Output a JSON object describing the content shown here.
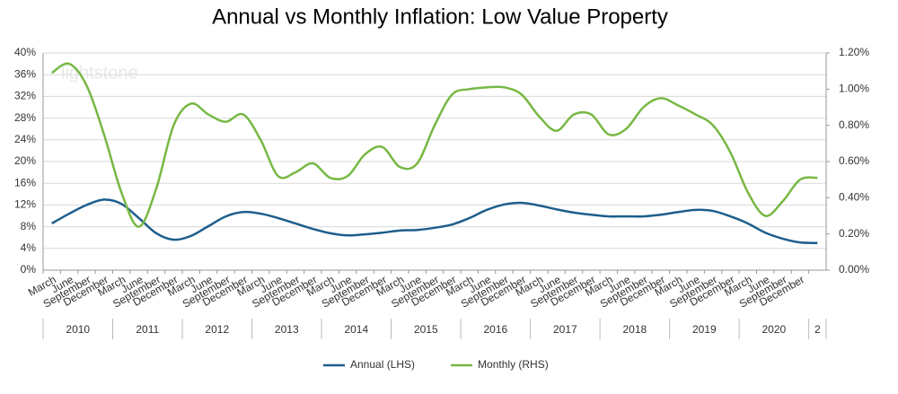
{
  "chart_data": {
    "type": "line",
    "title": "Annual vs Monthly Inflation: Low Value Property",
    "watermark": "lightstone",
    "categories": [
      "March",
      "June",
      "September",
      "December",
      "March",
      "June",
      "September",
      "December",
      "March",
      "June",
      "September",
      "December",
      "March",
      "June",
      "September",
      "December",
      "March",
      "June",
      "September",
      "December",
      "March",
      "June",
      "September",
      "December",
      "March",
      "June",
      "September",
      "December",
      "March",
      "June",
      "September",
      "December",
      "March",
      "June",
      "September",
      "December",
      "March",
      "June",
      "September",
      "December",
      "March",
      "June",
      "September",
      "December",
      null
    ],
    "year_groups": [
      "2010",
      "2011",
      "2012",
      "2013",
      "2014",
      "2015",
      "2016",
      "2017",
      "2018",
      "2019",
      "2020",
      "2"
    ],
    "series": [
      {
        "name": "Annual (LHS)",
        "color": "#1d5e8c",
        "axis": "y",
        "values": [
          8.6,
          10.4,
          12.0,
          13.0,
          12.2,
          9.6,
          6.8,
          5.6,
          6.3,
          8.1,
          9.9,
          10.7,
          10.4,
          9.6,
          8.6,
          7.6,
          6.8,
          6.4,
          6.6,
          6.9,
          7.3,
          7.4,
          7.8,
          8.4,
          9.6,
          11.1,
          12.1,
          12.4,
          11.9,
          11.2,
          10.6,
          10.2,
          9.9,
          9.9,
          9.9,
          10.2,
          10.7,
          11.1,
          10.9,
          9.9,
          8.6,
          6.9,
          5.8,
          5.1,
          5.0
        ]
      },
      {
        "name": "Monthly (RHS)",
        "color": "#77b843",
        "axis": "y2",
        "values": [
          1.09,
          1.14,
          1.02,
          0.75,
          0.43,
          0.24,
          0.45,
          0.8,
          0.92,
          0.86,
          0.82,
          0.86,
          0.72,
          0.52,
          0.54,
          0.59,
          0.51,
          0.52,
          0.64,
          0.68,
          0.57,
          0.59,
          0.8,
          0.97,
          1.0,
          1.01,
          1.01,
          0.97,
          0.85,
          0.77,
          0.86,
          0.86,
          0.75,
          0.78,
          0.9,
          0.95,
          0.91,
          0.86,
          0.8,
          0.65,
          0.43,
          0.3,
          0.38,
          0.5,
          0.51
        ]
      }
    ],
    "ylim": [
      0,
      40
    ],
    "yticks": [
      {
        "value": 0,
        "label": "0%"
      },
      {
        "value": 4,
        "label": "4%"
      },
      {
        "value": 8,
        "label": "8%"
      },
      {
        "value": 12,
        "label": "12%"
      },
      {
        "value": 16,
        "label": "16%"
      },
      {
        "value": 20,
        "label": "20%"
      },
      {
        "value": 24,
        "label": "24%"
      },
      {
        "value": 28,
        "label": "28%"
      },
      {
        "value": 32,
        "label": "32%"
      },
      {
        "value": 36,
        "label": "36%"
      },
      {
        "value": 40,
        "label": "40%"
      }
    ],
    "y2lim": [
      0,
      1.2
    ],
    "y2ticks": [
      {
        "value": 0,
        "label": "0.00%"
      },
      {
        "value": 0.2,
        "label": "0.20%"
      },
      {
        "value": 0.4,
        "label": "0.40%"
      },
      {
        "value": 0.6,
        "label": "0.60%"
      },
      {
        "value": 0.8,
        "label": "0.80%"
      },
      {
        "value": 1.0,
        "label": "1.00%"
      },
      {
        "value": 1.2,
        "label": "1.20%"
      }
    ],
    "grid": true,
    "legend": "bottom"
  }
}
